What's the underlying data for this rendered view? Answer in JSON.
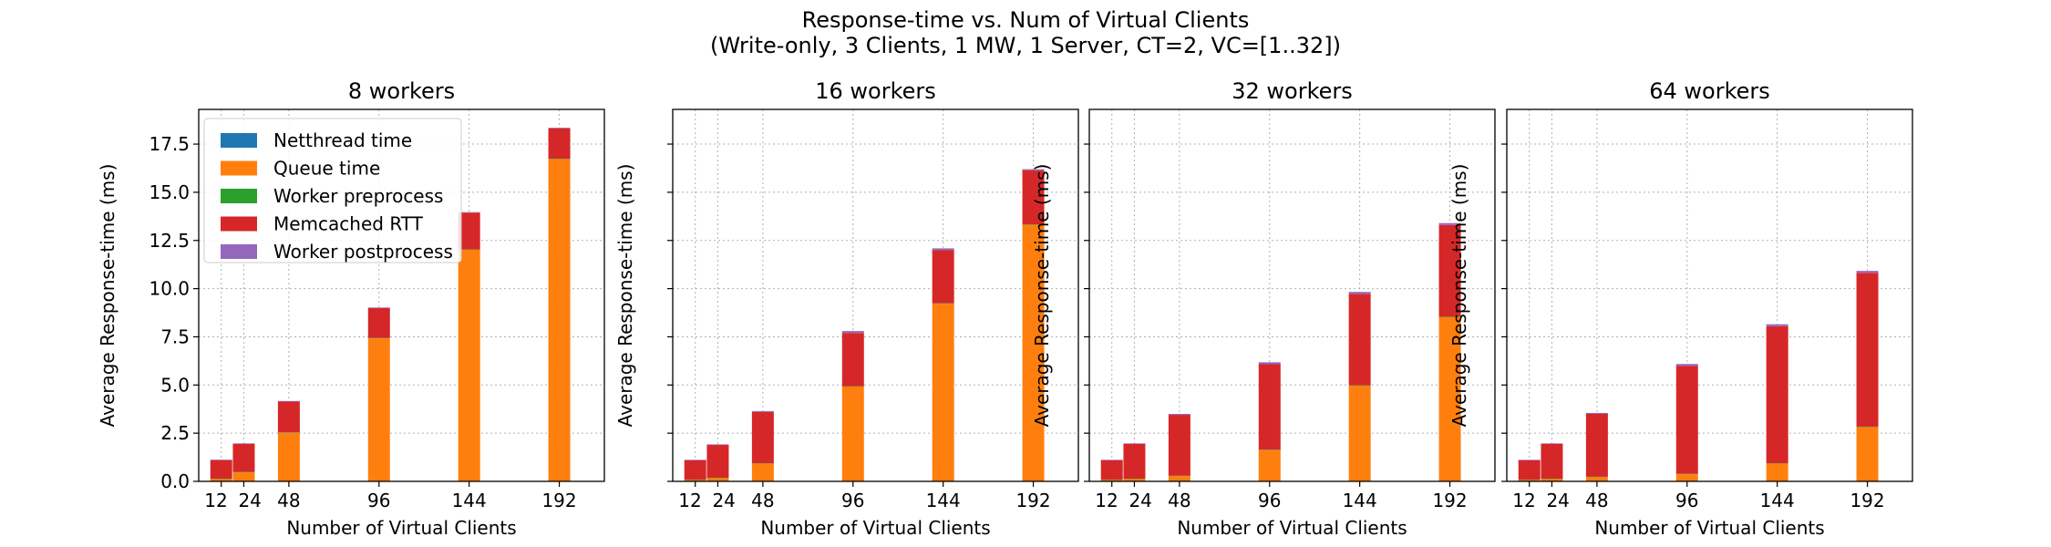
{
  "figure": {
    "title_line1": "Response-time vs. Num of Virtual Clients",
    "title_line2": "(Write-only, 3 Clients, 1 MW, 1 Server, CT=2, VC=[1..32])"
  },
  "colors": {
    "Netthread time": "#1f77b4",
    "Queue time": "#ff7f0e",
    "Worker preprocess": "#2ca02c",
    "Memcached RTT": "#d62728",
    "Worker postprocess": "#9467bd"
  },
  "chart_data": [
    {
      "type": "bar",
      "stacked": true,
      "title": "8 workers",
      "xlabel": "Number of Virtual Clients",
      "ylabel": "Average Response-time (ms)",
      "x": [
        12,
        24,
        48,
        96,
        144,
        192
      ],
      "x_tick_labels": [
        "12",
        "24",
        "48",
        "96",
        "144",
        "192"
      ],
      "ylim": [
        0,
        19.3
      ],
      "y_ticks": [
        "0.0",
        "2.5",
        "5.0",
        "7.5",
        "10.0",
        "12.5",
        "15.0",
        "17.5"
      ],
      "grid": true,
      "legend": "upper-left",
      "series": [
        {
          "name": "Netthread time",
          "values": [
            0.02,
            0.02,
            0.02,
            0.02,
            0.02,
            0.02
          ]
        },
        {
          "name": "Queue time",
          "values": [
            0.1,
            0.45,
            2.5,
            7.4,
            12.0,
            16.7
          ]
        },
        {
          "name": "Worker preprocess",
          "values": [
            0.02,
            0.02,
            0.02,
            0.02,
            0.02,
            0.02
          ]
        },
        {
          "name": "Memcached RTT",
          "values": [
            0.96,
            1.45,
            1.6,
            1.55,
            1.9,
            1.58
          ]
        },
        {
          "name": "Worker postprocess",
          "values": [
            0.03,
            0.03,
            0.03,
            0.03,
            0.03,
            0.03
          ]
        }
      ]
    },
    {
      "type": "bar",
      "stacked": true,
      "title": "16 workers",
      "xlabel": "Number of Virtual Clients",
      "ylabel": "Average Response-time (ms)",
      "x": [
        12,
        24,
        48,
        96,
        144,
        192
      ],
      "x_tick_labels": [
        "12",
        "24",
        "48",
        "96",
        "144",
        "192"
      ],
      "ylim": [
        0,
        19.3
      ],
      "y_ticks": [
        "",
        "",
        "",
        "",
        "",
        "",
        "",
        ""
      ],
      "grid": true,
      "series": [
        {
          "name": "Netthread time",
          "values": [
            0.02,
            0.02,
            0.02,
            0.02,
            0.02,
            0.02
          ]
        },
        {
          "name": "Queue time",
          "values": [
            0.05,
            0.15,
            0.9,
            4.9,
            9.2,
            13.3
          ]
        },
        {
          "name": "Worker preprocess",
          "values": [
            0.02,
            0.02,
            0.02,
            0.02,
            0.02,
            0.02
          ]
        },
        {
          "name": "Memcached RTT",
          "values": [
            1.0,
            1.7,
            2.66,
            2.76,
            2.75,
            2.8
          ]
        },
        {
          "name": "Worker postprocess",
          "values": [
            0.03,
            0.03,
            0.05,
            0.1,
            0.1,
            0.06
          ]
        }
      ]
    },
    {
      "type": "bar",
      "stacked": true,
      "title": "32 workers",
      "xlabel": "Number of Virtual Clients",
      "ylabel": "Average Response-time (ms)",
      "x": [
        12,
        24,
        48,
        96,
        144,
        192
      ],
      "x_tick_labels": [
        "12",
        "24",
        "48",
        "96",
        "144",
        "192"
      ],
      "ylim": [
        0,
        19.3
      ],
      "y_ticks": [
        "",
        "",
        "",
        "",
        "",
        "",
        "",
        ""
      ],
      "grid": true,
      "series": [
        {
          "name": "Netthread time",
          "values": [
            0.02,
            0.02,
            0.02,
            0.02,
            0.02,
            0.02
          ]
        },
        {
          "name": "Queue time",
          "values": [
            0.05,
            0.1,
            0.25,
            1.6,
            4.95,
            8.5
          ]
        },
        {
          "name": "Worker preprocess",
          "values": [
            0.02,
            0.02,
            0.02,
            0.02,
            0.02,
            0.02
          ]
        },
        {
          "name": "Memcached RTT",
          "values": [
            1.0,
            1.8,
            3.16,
            4.44,
            4.74,
            4.76
          ]
        },
        {
          "name": "Worker postprocess",
          "values": [
            0.03,
            0.03,
            0.05,
            0.1,
            0.1,
            0.1
          ]
        }
      ]
    },
    {
      "type": "bar",
      "stacked": true,
      "title": "64 workers",
      "xlabel": "Number of Virtual Clients",
      "ylabel": "Average Response-time (ms)",
      "x": [
        12,
        24,
        48,
        96,
        144,
        192
      ],
      "x_tick_labels": [
        "12",
        "24",
        "48",
        "96",
        "144",
        "192"
      ],
      "ylim": [
        0,
        19.3
      ],
      "y_ticks": [
        "",
        "",
        "",
        "",
        "",
        "",
        "",
        ""
      ],
      "grid": true,
      "series": [
        {
          "name": "Netthread time",
          "values": [
            0.02,
            0.02,
            0.02,
            0.02,
            0.02,
            0.02
          ]
        },
        {
          "name": "Queue time",
          "values": [
            0.05,
            0.1,
            0.2,
            0.35,
            0.9,
            2.8
          ]
        },
        {
          "name": "Worker preprocess",
          "values": [
            0.02,
            0.02,
            0.02,
            0.02,
            0.02,
            0.02
          ]
        },
        {
          "name": "Memcached RTT",
          "values": [
            1.0,
            1.8,
            3.26,
            5.6,
            7.11,
            7.98
          ]
        },
        {
          "name": "Worker postprocess",
          "values": [
            0.03,
            0.03,
            0.05,
            0.1,
            0.1,
            0.1
          ]
        }
      ]
    }
  ]
}
